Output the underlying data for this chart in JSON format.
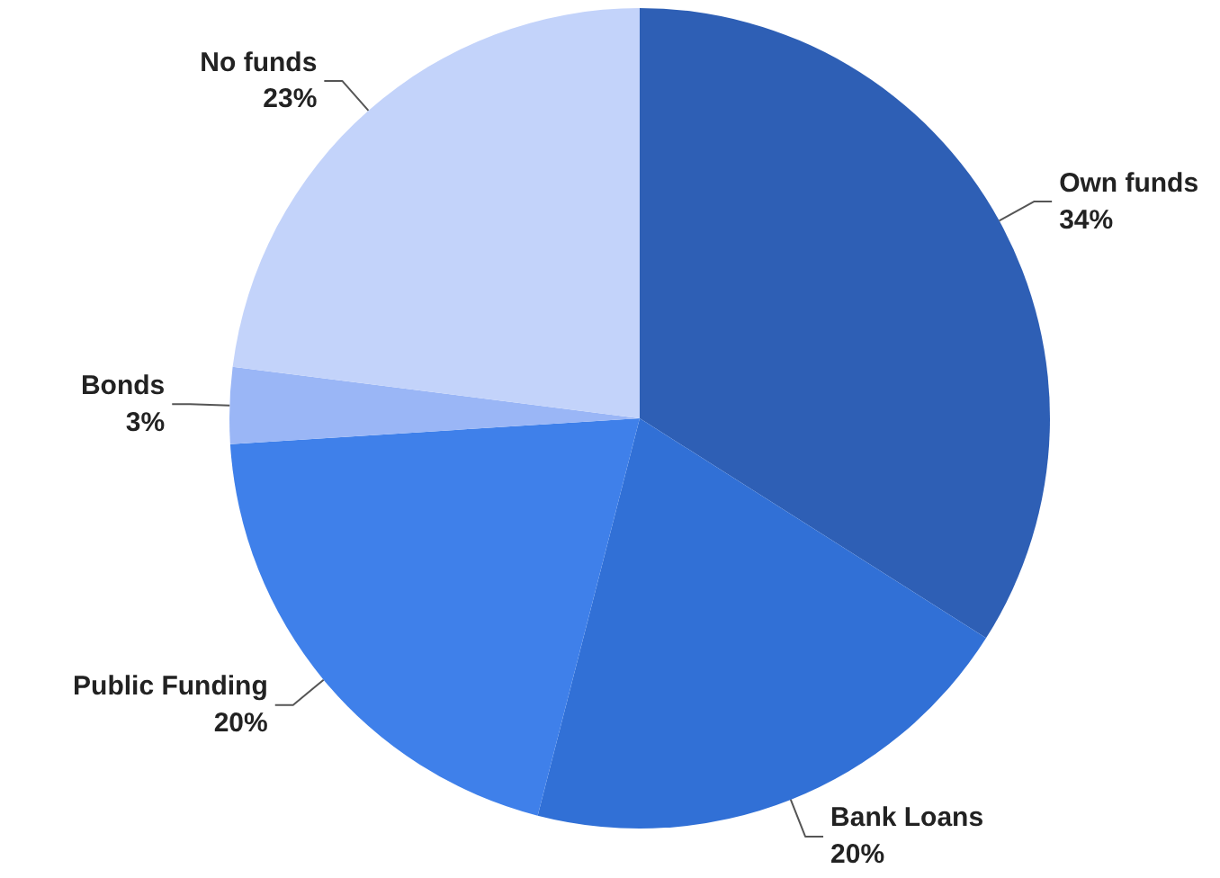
{
  "chart_data": {
    "type": "pie",
    "categories": [
      "Own funds",
      "Bank Loans",
      "Public Funding",
      "Bonds",
      "No funds"
    ],
    "values": [
      34,
      20,
      20,
      3,
      23
    ],
    "value_labels": [
      "34%",
      "20%",
      "20%",
      "3%",
      "23%"
    ],
    "colors": [
      "#2e5fb5",
      "#3170d6",
      "#3f80ea",
      "#9ab6f6",
      "#c3d3fa"
    ]
  }
}
